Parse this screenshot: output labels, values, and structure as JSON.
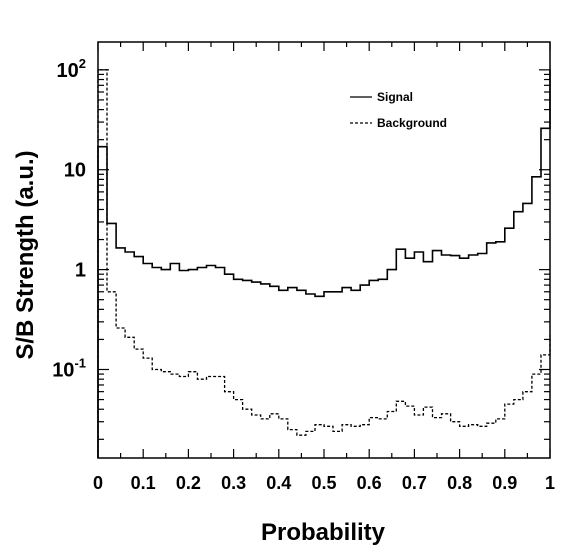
{
  "chart_data": {
    "type": "line",
    "title": "",
    "xlabel": "Probability",
    "ylabel": "S/B Strength (a.u.)",
    "xlim": [
      0,
      1
    ],
    "ylim": [
      0.013,
      190
    ],
    "yscale": "log",
    "grid": false,
    "legend_position": "top-right",
    "x_ticks": [
      {
        "value": 0,
        "label": "0"
      },
      {
        "value": 0.1,
        "label": "0.1"
      },
      {
        "value": 0.2,
        "label": "0.2"
      },
      {
        "value": 0.3,
        "label": "0.3"
      },
      {
        "value": 0.4,
        "label": "0.4"
      },
      {
        "value": 0.5,
        "label": "0.5"
      },
      {
        "value": 0.6,
        "label": "0.6"
      },
      {
        "value": 0.7,
        "label": "0.7"
      },
      {
        "value": 0.8,
        "label": "0.8"
      },
      {
        "value": 0.9,
        "label": "0.9"
      },
      {
        "value": 1,
        "label": "1"
      }
    ],
    "y_ticks": [
      {
        "value": 100,
        "base": "10",
        "exp": "2"
      },
      {
        "value": 10,
        "base": "10",
        "exp": ""
      },
      {
        "value": 1,
        "base": "1",
        "exp": ""
      },
      {
        "value": 0.1,
        "base": "10",
        "exp": "-1"
      }
    ],
    "bin_edges": [
      0,
      0.02,
      0.04,
      0.06,
      0.08,
      0.1,
      0.12,
      0.14,
      0.16,
      0.18,
      0.2,
      0.22,
      0.24,
      0.26,
      0.28,
      0.3,
      0.32,
      0.34,
      0.36,
      0.38,
      0.4,
      0.42,
      0.44,
      0.46,
      0.48,
      0.5,
      0.52,
      0.54,
      0.56,
      0.58,
      0.6,
      0.62,
      0.64,
      0.66,
      0.68,
      0.7,
      0.72,
      0.74,
      0.76,
      0.78,
      0.8,
      0.82,
      0.84,
      0.86,
      0.88,
      0.9,
      0.92,
      0.94,
      0.96,
      0.98,
      1.0
    ],
    "series": [
      {
        "name": "Signal",
        "style": "solid",
        "color": "#000000",
        "values": [
          17,
          2.9,
          1.65,
          1.5,
          1.35,
          1.15,
          1.05,
          1.0,
          1.15,
          0.98,
          1.0,
          1.05,
          1.1,
          1.05,
          0.9,
          0.8,
          0.78,
          0.75,
          0.72,
          0.68,
          0.62,
          0.66,
          0.62,
          0.57,
          0.54,
          0.6,
          0.6,
          0.66,
          0.62,
          0.7,
          0.78,
          0.8,
          1.0,
          1.6,
          1.3,
          1.5,
          1.2,
          1.55,
          1.4,
          1.38,
          1.3,
          1.4,
          1.45,
          1.85,
          1.9,
          2.6,
          3.8,
          4.6,
          8.5,
          26,
          100
        ]
      },
      {
        "name": "Background",
        "style": "dashed",
        "color": "#000000",
        "values": [
          100,
          0.6,
          0.26,
          0.21,
          0.16,
          0.13,
          0.1,
          0.095,
          0.09,
          0.085,
          0.095,
          0.08,
          0.085,
          0.085,
          0.06,
          0.05,
          0.04,
          0.035,
          0.032,
          0.036,
          0.032,
          0.025,
          0.022,
          0.024,
          0.028,
          0.027,
          0.024,
          0.028,
          0.027,
          0.028,
          0.033,
          0.032,
          0.038,
          0.048,
          0.043,
          0.035,
          0.042,
          0.033,
          0.036,
          0.03,
          0.027,
          0.028,
          0.027,
          0.029,
          0.032,
          0.045,
          0.05,
          0.06,
          0.09,
          0.14,
          0.22
        ]
      }
    ]
  }
}
